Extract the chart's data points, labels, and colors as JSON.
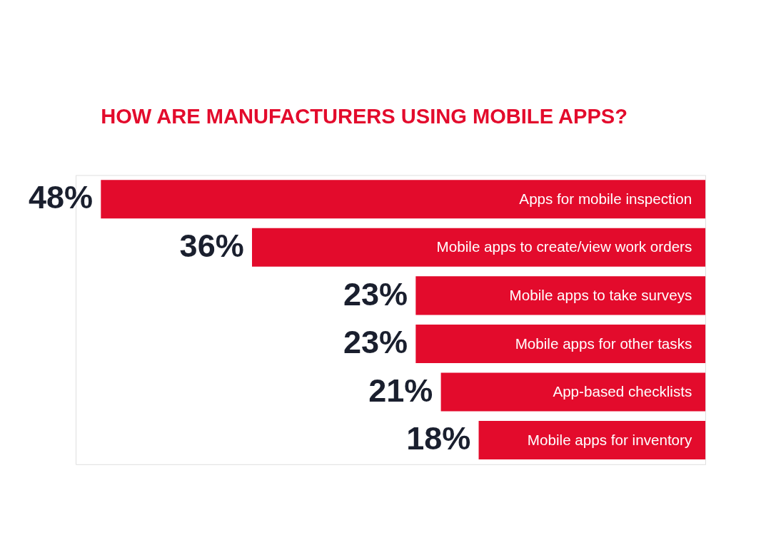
{
  "chart_data": {
    "type": "bar",
    "orientation": "horizontal",
    "title": "HOW ARE MANUFACTURERS USING MOBILE APPS?",
    "categories": [
      "Apps for mobile inspection",
      "Mobile apps to create/view work orders",
      "Mobile apps to take surveys",
      "Mobile apps for other tasks",
      "App-based checklists",
      "Mobile apps for inventory"
    ],
    "values": [
      48,
      36,
      23,
      23,
      21,
      18
    ],
    "value_labels": [
      "48%",
      "36%",
      "23%",
      "23%",
      "21%",
      "18%"
    ],
    "color": "#e30b2c"
  }
}
